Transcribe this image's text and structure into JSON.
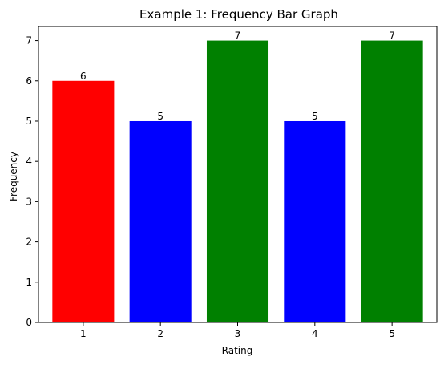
{
  "chart_data": {
    "type": "bar",
    "title": "Example 1: Frequency Bar Graph",
    "xlabel": "Rating",
    "ylabel": "Frequency",
    "categories": [
      "1",
      "2",
      "3",
      "4",
      "5"
    ],
    "values": [
      6,
      5,
      7,
      5,
      7
    ],
    "data_labels": [
      "6",
      "5",
      "7",
      "5",
      "7"
    ],
    "colors": [
      "#ff0000",
      "#0000ff",
      "#008000",
      "#0000ff",
      "#008000"
    ],
    "ylim": [
      0,
      7.35
    ],
    "yticks": [
      0,
      1,
      2,
      3,
      4,
      5,
      6,
      7
    ],
    "grid": false,
    "legend": false
  }
}
